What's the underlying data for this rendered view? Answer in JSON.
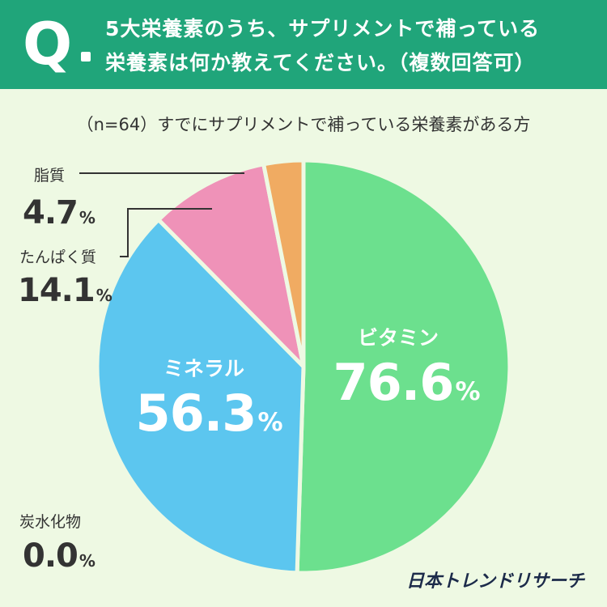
{
  "question": {
    "mark": "Q",
    "line1": "5大栄養素のうち、サプリメントで補っている",
    "line2": "栄養素は何か教えてください。（複数回答可）"
  },
  "subtitle": "（n=64）すでにサプリメントで補っている栄養素がある方",
  "brand": "日本トレンドリサーチ",
  "colors": {
    "header_bg": "#20a57a",
    "page_bg": "#eef9e3",
    "vitamin": "#6ce08e",
    "mineral": "#5cc6ef",
    "protein": "#ef92b8",
    "lipid": "#f0ab62"
  },
  "chart_data": {
    "type": "pie",
    "title": "5大栄養素のうち、サプリメントで補っている栄養素は何か教えてください。（複数回答可）",
    "subtitle": "（n=64）すでにサプリメントで補っている栄養素がある方",
    "unit": "%",
    "slices": [
      {
        "label": "ビタミン",
        "value": 76.6,
        "display": "76.6",
        "color": "#6ce08e",
        "label_position": "inside"
      },
      {
        "label": "ミネラル",
        "value": 56.3,
        "display": "56.3",
        "color": "#5cc6ef",
        "label_position": "inside"
      },
      {
        "label": "たんぱく質",
        "value": 14.1,
        "display": "14.1",
        "color": "#ef92b8",
        "label_position": "outside"
      },
      {
        "label": "脂質",
        "value": 4.7,
        "display": "4.7",
        "color": "#f0ab62",
        "label_position": "outside"
      },
      {
        "label": "炭水化物",
        "value": 0.0,
        "display": "0.0",
        "color": "#cccccc",
        "label_position": "outside"
      }
    ]
  }
}
